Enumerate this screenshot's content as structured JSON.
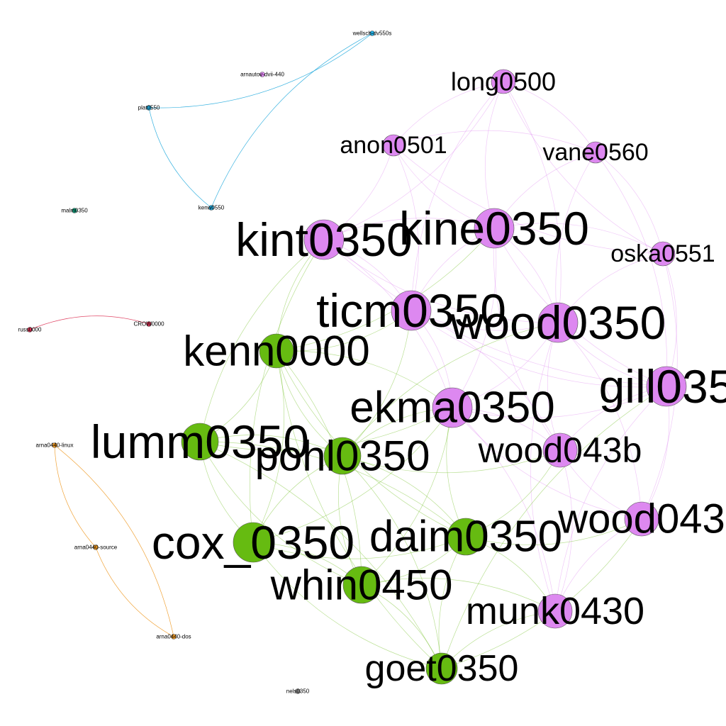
{
  "graph": {
    "communities": {
      "purple": "#dd88f0",
      "green": "#66bb11",
      "blue": "#22aadd",
      "orange": "#ee9922",
      "red": "#dd3355",
      "teal": "#119977",
      "gray": "#888888"
    },
    "nodes": [
      {
        "id": "long0500",
        "label": "long0500",
        "group": "purple"
      },
      {
        "id": "anon0501",
        "label": "anon0501",
        "group": "purple"
      },
      {
        "id": "vane0560",
        "label": "vane0560",
        "group": "purple"
      },
      {
        "id": "kine0350",
        "label": "kine0350",
        "group": "purple"
      },
      {
        "id": "kint0350",
        "label": "kint0350",
        "group": "purple"
      },
      {
        "id": "oska0551",
        "label": "oska0551",
        "group": "purple"
      },
      {
        "id": "ticm0350",
        "label": "ticm0350",
        "group": "purple"
      },
      {
        "id": "wood0350",
        "label": "wood0350",
        "group": "purple"
      },
      {
        "id": "gill0350",
        "label": "gill035",
        "group": "purple"
      },
      {
        "id": "ekma0350",
        "label": "ekma0350",
        "group": "purple"
      },
      {
        "id": "wood043b",
        "label": "wood043b",
        "group": "purple"
      },
      {
        "id": "wood0430",
        "label": "wood043",
        "group": "purple"
      },
      {
        "id": "munk0430",
        "label": "munk0430",
        "group": "purple"
      },
      {
        "id": "kenn0000",
        "label": "kenn0000",
        "group": "green"
      },
      {
        "id": "lumm0350",
        "label": "lumm0350",
        "group": "green"
      },
      {
        "id": "pohl0350",
        "label": "pohl0350",
        "group": "green"
      },
      {
        "id": "cox_0350",
        "label": "cox_0350",
        "group": "green"
      },
      {
        "id": "daim0350",
        "label": "daim0350",
        "group": "green"
      },
      {
        "id": "whin0450",
        "label": "whin0450",
        "group": "green"
      },
      {
        "id": "goet0350",
        "label": "goet0350",
        "group": "green"
      },
      {
        "id": "wellsch-dv550s",
        "label": "wellsch-dv550s",
        "group": "blue"
      },
      {
        "id": "arnautov-dvii-440",
        "label": "arnautov-dvii-440",
        "group": "purple"
      },
      {
        "id": "plat0550",
        "label": "plat0550",
        "group": "blue"
      },
      {
        "id": "kenw0550",
        "label": "kenw0550",
        "group": "blue"
      },
      {
        "id": "malm0350",
        "label": "malm0350",
        "group": "teal"
      },
      {
        "id": "russ0000",
        "label": "russ0000",
        "group": "red"
      },
      {
        "id": "CROW0000",
        "label": "CROW0000",
        "group": "red"
      },
      {
        "id": "arna0440-linux",
        "label": "arna0440-linux",
        "group": "orange"
      },
      {
        "id": "arna0440-source",
        "label": "arna0440-source",
        "group": "orange"
      },
      {
        "id": "arna0440-dos",
        "label": "arna0440-dos",
        "group": "orange"
      },
      {
        "id": "nels0350",
        "label": "nels0350",
        "group": "gray"
      }
    ],
    "edges": [
      [
        "wellsch-dv550s",
        "kenw0550"
      ],
      [
        "wellsch-dv550s",
        "plat0550"
      ],
      [
        "plat0550",
        "kenw0550"
      ],
      [
        "russ0000",
        "CROW0000"
      ],
      [
        "arna0440-linux",
        "arna0440-source"
      ],
      [
        "arna0440-linux",
        "arna0440-dos"
      ],
      [
        "arna0440-source",
        "arna0440-dos"
      ],
      [
        "kenn0000",
        "lumm0350"
      ],
      [
        "kenn0000",
        "pohl0350"
      ],
      [
        "kenn0000",
        "cox_0350"
      ],
      [
        "kenn0000",
        "daim0350"
      ],
      [
        "kenn0000",
        "whin0450"
      ],
      [
        "kenn0000",
        "goet0350"
      ],
      [
        "lumm0350",
        "pohl0350"
      ],
      [
        "lumm0350",
        "cox_0350"
      ],
      [
        "lumm0350",
        "daim0350"
      ],
      [
        "lumm0350",
        "whin0450"
      ],
      [
        "lumm0350",
        "goet0350"
      ],
      [
        "pohl0350",
        "cox_0350"
      ],
      [
        "pohl0350",
        "daim0350"
      ],
      [
        "pohl0350",
        "whin0450"
      ],
      [
        "pohl0350",
        "goet0350"
      ],
      [
        "cox_0350",
        "daim0350"
      ],
      [
        "cox_0350",
        "whin0450"
      ],
      [
        "cox_0350",
        "goet0350"
      ],
      [
        "daim0350",
        "whin0450"
      ],
      [
        "daim0350",
        "goet0350"
      ],
      [
        "whin0450",
        "goet0350"
      ],
      [
        "long0500",
        "anon0501"
      ],
      [
        "long0500",
        "vane0560"
      ],
      [
        "long0500",
        "kine0350"
      ],
      [
        "long0500",
        "kint0350"
      ],
      [
        "long0500",
        "oska0551"
      ],
      [
        "long0500",
        "wood0350"
      ],
      [
        "long0500",
        "ticm0350"
      ],
      [
        "anon0501",
        "vane0560"
      ],
      [
        "anon0501",
        "kine0350"
      ],
      [
        "anon0501",
        "kint0350"
      ],
      [
        "anon0501",
        "oska0551"
      ],
      [
        "anon0501",
        "ticm0350"
      ],
      [
        "vane0560",
        "kine0350"
      ],
      [
        "vane0560",
        "oska0551"
      ],
      [
        "vane0560",
        "wood0350"
      ],
      [
        "vane0560",
        "gill0350"
      ],
      [
        "kine0350",
        "kint0350"
      ],
      [
        "kine0350",
        "oska0551"
      ],
      [
        "kine0350",
        "ticm0350"
      ],
      [
        "kine0350",
        "wood0350"
      ],
      [
        "kine0350",
        "gill0350"
      ],
      [
        "kine0350",
        "ekma0350"
      ],
      [
        "kine0350",
        "wood043b"
      ],
      [
        "kint0350",
        "ticm0350"
      ],
      [
        "kint0350",
        "wood0350"
      ],
      [
        "kint0350",
        "ekma0350"
      ],
      [
        "kint0350",
        "gill0350"
      ],
      [
        "oska0551",
        "gill0350"
      ],
      [
        "oska0551",
        "wood0350"
      ],
      [
        "oska0551",
        "wood0430"
      ],
      [
        "ticm0350",
        "wood0350"
      ],
      [
        "ticm0350",
        "ekma0350"
      ],
      [
        "ticm0350",
        "gill0350"
      ],
      [
        "ticm0350",
        "wood043b"
      ],
      [
        "wood0350",
        "gill0350"
      ],
      [
        "wood0350",
        "ekma0350"
      ],
      [
        "wood0350",
        "wood043b"
      ],
      [
        "wood0350",
        "wood0430"
      ],
      [
        "wood0350",
        "munk0430"
      ],
      [
        "gill0350",
        "ekma0350"
      ],
      [
        "gill0350",
        "wood043b"
      ],
      [
        "gill0350",
        "wood0430"
      ],
      [
        "gill0350",
        "munk0430"
      ],
      [
        "ekma0350",
        "wood043b"
      ],
      [
        "ekma0350",
        "wood0430"
      ],
      [
        "ekma0350",
        "munk0430"
      ],
      [
        "wood043b",
        "wood0430"
      ],
      [
        "wood043b",
        "munk0430"
      ],
      [
        "wood0430",
        "munk0430"
      ],
      [
        "kenn0000",
        "kint0350"
      ],
      [
        "kenn0000",
        "ticm0350"
      ],
      [
        "kenn0000",
        "ekma0350"
      ],
      [
        "kenn0000",
        "kine0350"
      ],
      [
        "lumm0350",
        "kint0350"
      ],
      [
        "lumm0350",
        "ekma0350"
      ],
      [
        "pohl0350",
        "ekma0350"
      ],
      [
        "pohl0350",
        "ticm0350"
      ],
      [
        "pohl0350",
        "wood0350"
      ],
      [
        "pohl0350",
        "wood043b"
      ],
      [
        "daim0350",
        "ekma0350"
      ],
      [
        "daim0350",
        "wood043b"
      ],
      [
        "daim0350",
        "munk0430"
      ],
      [
        "daim0350",
        "wood0430"
      ],
      [
        "whin0450",
        "munk0430"
      ],
      [
        "whin0450",
        "ekma0350"
      ],
      [
        "goet0350",
        "munk0430"
      ],
      [
        "goet0350",
        "wood0430"
      ],
      [
        "goet0350",
        "gill0350"
      ],
      [
        "cox_0350",
        "ekma0350"
      ],
      [
        "cox_0350",
        "kint0350"
      ]
    ]
  }
}
